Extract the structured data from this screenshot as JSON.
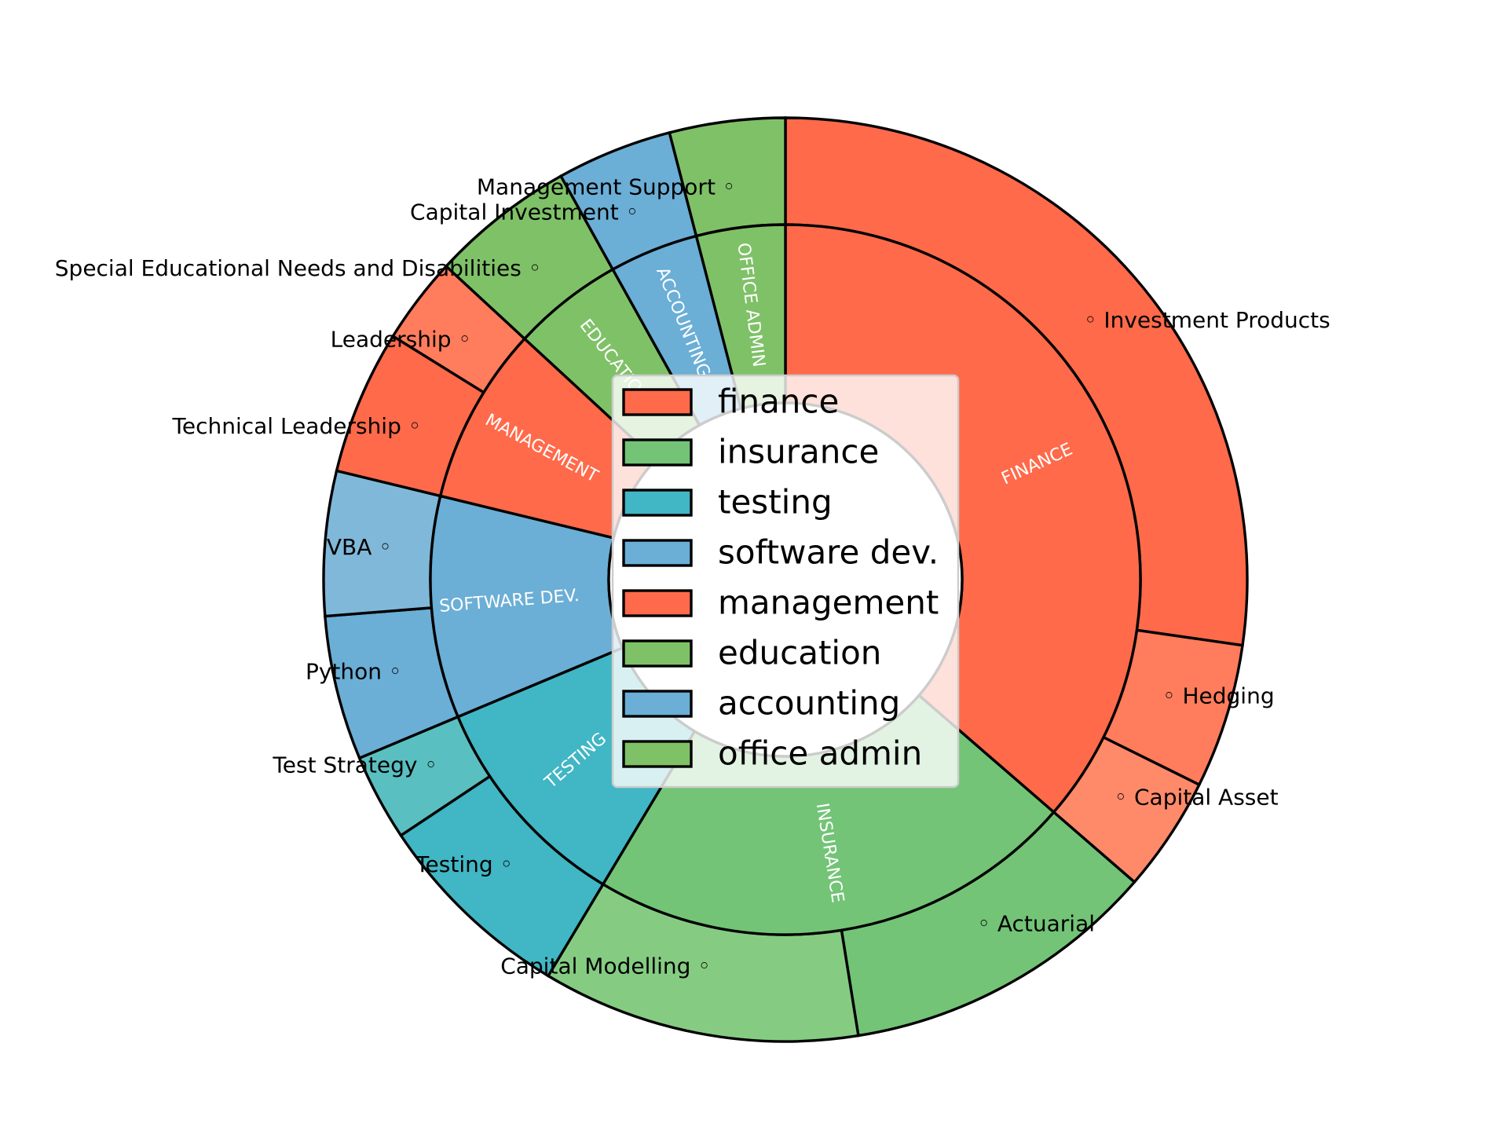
{
  "chart_data": {
    "type": "pie",
    "subtype": "nested-donut",
    "legend": {
      "placement": "center",
      "entries": [
        "finance",
        "insurance",
        "testing",
        "software dev.",
        "management",
        "education",
        "accounting",
        "office admin"
      ]
    },
    "inner_ring": [
      {
        "label": "FINANCE",
        "value": 36,
        "color": "#FF6A4A"
      },
      {
        "label": "INSURANCE",
        "value": 22,
        "color": "#73C476"
      },
      {
        "label": "TESTING",
        "value": 10,
        "color": "#41B6C4"
      },
      {
        "label": "SOFTWARE DEV.",
        "value": 10,
        "color": "#6BAED6"
      },
      {
        "label": "MANAGEMENT",
        "value": 8,
        "color": "#FF6A4A"
      },
      {
        "label": "EDUCATION",
        "value": 5,
        "color": "#7FC167"
      },
      {
        "label": "ACCOUNTING",
        "value": 4,
        "color": "#6BAED6"
      },
      {
        "label": "OFFICE ADMIN",
        "value": 4,
        "color": "#7FC167"
      }
    ],
    "outer_ring": [
      {
        "label": "Investment Products",
        "value": 27,
        "color": "#FF6A4A"
      },
      {
        "label": "Hedging",
        "value": 5,
        "color": "#FF7C5C"
      },
      {
        "label": "Capital Asset",
        "value": 4,
        "color": "#FF8A6A"
      },
      {
        "label": "Actuarial",
        "value": 11,
        "color": "#73C476"
      },
      {
        "label": "Capital Modelling",
        "value": 11,
        "color": "#85CC82"
      },
      {
        "label": "Testing",
        "value": 7,
        "color": "#41B6C4"
      },
      {
        "label": "Test Strategy",
        "value": 3,
        "color": "#5ABFC0"
      },
      {
        "label": "Python",
        "value": 5,
        "color": "#6BAED6"
      },
      {
        "label": "VBA",
        "value": 5,
        "color": "#80B8D9"
      },
      {
        "label": "Technical Leadership",
        "value": 5,
        "color": "#FF6A4A"
      },
      {
        "label": "Leadership",
        "value": 3,
        "color": "#FF7C5C"
      },
      {
        "label": "Special Educational Needs and Disabilities",
        "value": 5,
        "color": "#7FC167"
      },
      {
        "label": "Capital Investment",
        "value": 4,
        "color": "#6BAED6"
      },
      {
        "label": "Management Support",
        "value": 4,
        "color": "#7FC167"
      }
    ]
  }
}
